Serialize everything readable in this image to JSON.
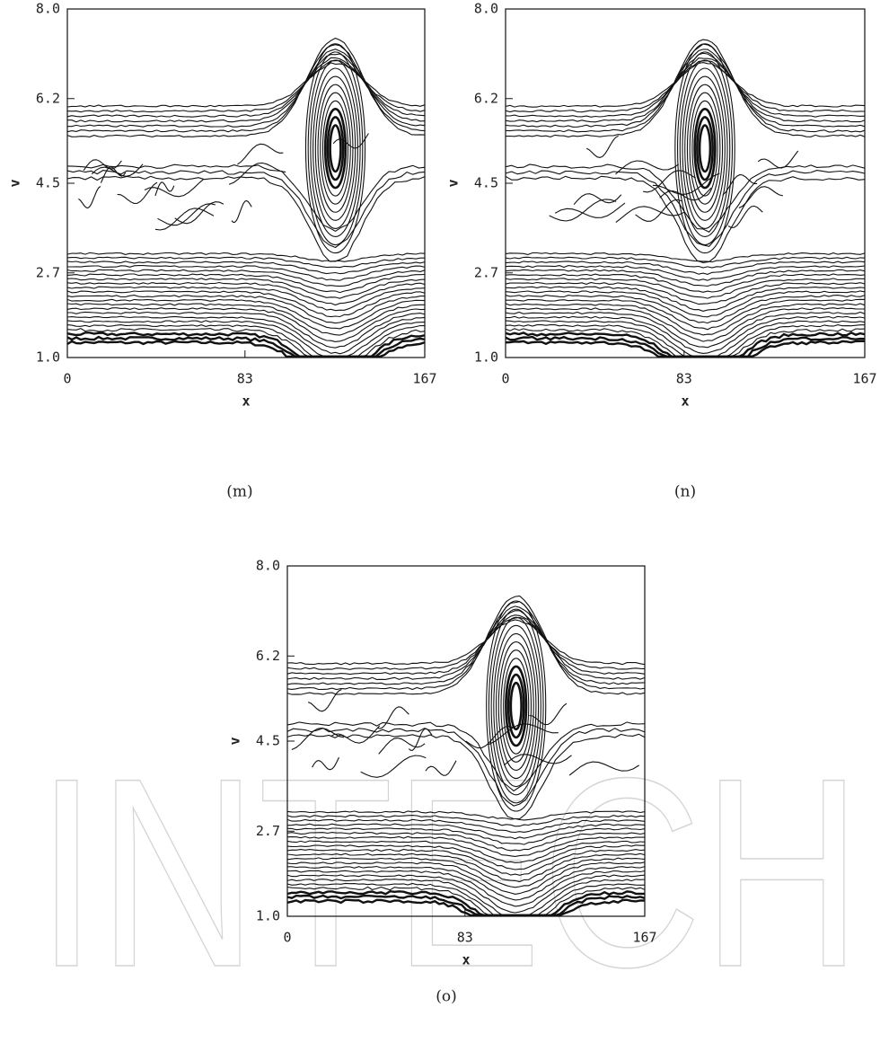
{
  "watermark": "INTECH",
  "chart_data": [
    {
      "type": "contour",
      "caption": "(m)",
      "xlabel": "x",
      "ylabel": "v",
      "xlim": [
        0,
        167
      ],
      "ylim": [
        1,
        8
      ],
      "xticks": [
        0,
        83,
        167
      ],
      "yticks": [
        {
          "value": 1,
          "label": "1.0"
        },
        2.7,
        4.5,
        6.2,
        {
          "value": 8,
          "label": "8.0"
        }
      ]
    },
    {
      "type": "contour",
      "caption": "(n)",
      "xlabel": "x",
      "ylabel": "v",
      "xlim": [
        0,
        167
      ],
      "ylim": [
        1,
        8
      ],
      "xticks": [
        0,
        83,
        167
      ],
      "yticks": [
        {
          "value": 1,
          "label": "1.0"
        },
        2.7,
        4.5,
        6.2,
        {
          "value": 8,
          "label": "8.0"
        }
      ]
    },
    {
      "type": "contour",
      "caption": "(o)",
      "xlabel": "x",
      "ylabel": "v",
      "xlim": [
        0,
        167
      ],
      "ylim": [
        1,
        8
      ],
      "xticks": [
        0,
        83,
        167
      ],
      "yticks": [
        {
          "value": 1,
          "label": "1.0"
        },
        2.7,
        4.5,
        6.2,
        {
          "value": 8,
          "label": "8.0"
        }
      ]
    }
  ]
}
